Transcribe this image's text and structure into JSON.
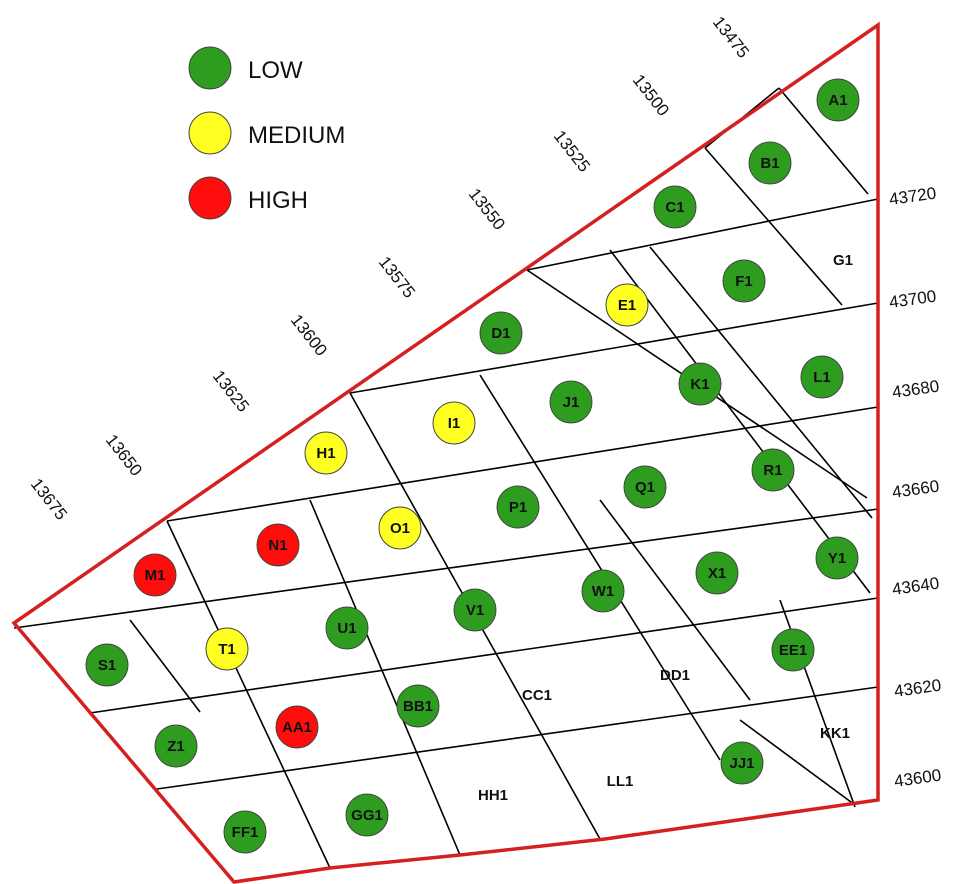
{
  "legend": {
    "low": {
      "label": "LOW",
      "color": "#2e9d1f"
    },
    "medium": {
      "label": "MEDIUM",
      "color": "#ffff22"
    },
    "high": {
      "label": "HIGH",
      "color": "#ff0d0d"
    }
  },
  "colors": {
    "border": "#d42020",
    "grid": "#000000"
  },
  "eastings": [
    "13475",
    "13500",
    "13525",
    "13550",
    "13575",
    "13600",
    "13625",
    "13650",
    "13675"
  ],
  "northings": [
    "43720",
    "43700",
    "43680",
    "43660",
    "43640",
    "43620",
    "43600"
  ],
  "plots": [
    {
      "label": "A1",
      "level": "low"
    },
    {
      "label": "B1",
      "level": "low"
    },
    {
      "label": "C1",
      "level": "low"
    },
    {
      "label": "G1",
      "level": "none"
    },
    {
      "label": "F1",
      "level": "low"
    },
    {
      "label": "E1",
      "level": "medium"
    },
    {
      "label": "D1",
      "level": "low"
    },
    {
      "label": "L1",
      "level": "low"
    },
    {
      "label": "K1",
      "level": "low"
    },
    {
      "label": "J1",
      "level": "low"
    },
    {
      "label": "I1",
      "level": "medium"
    },
    {
      "label": "H1",
      "level": "medium"
    },
    {
      "label": "R1",
      "level": "low"
    },
    {
      "label": "Q1",
      "level": "low"
    },
    {
      "label": "P1",
      "level": "low"
    },
    {
      "label": "O1",
      "level": "medium"
    },
    {
      "label": "N1",
      "level": "high"
    },
    {
      "label": "M1",
      "level": "high"
    },
    {
      "label": "Y1",
      "level": "low"
    },
    {
      "label": "X1",
      "level": "low"
    },
    {
      "label": "W1",
      "level": "low"
    },
    {
      "label": "V1",
      "level": "low"
    },
    {
      "label": "U1",
      "level": "low"
    },
    {
      "label": "T1",
      "level": "medium"
    },
    {
      "label": "S1",
      "level": "low"
    },
    {
      "label": "EE1",
      "level": "low"
    },
    {
      "label": "DD1",
      "level": "none"
    },
    {
      "label": "CC1",
      "level": "none"
    },
    {
      "label": "BB1",
      "level": "low"
    },
    {
      "label": "AA1",
      "level": "high"
    },
    {
      "label": "Z1",
      "level": "low"
    },
    {
      "label": "KK1",
      "level": "none"
    },
    {
      "label": "JJ1",
      "level": "low"
    },
    {
      "label": "LL1",
      "level": "none"
    },
    {
      "label": "HH1",
      "level": "none"
    },
    {
      "label": "GG1",
      "level": "low"
    },
    {
      "label": "FF1",
      "level": "low"
    }
  ]
}
